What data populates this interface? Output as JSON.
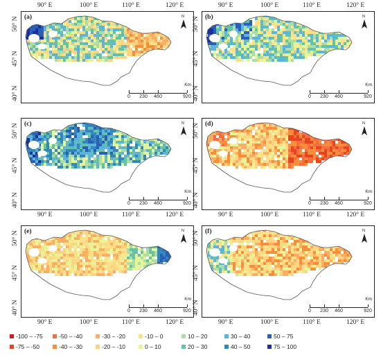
{
  "panels": [
    {
      "id": "a",
      "label": "(a)",
      "theme": "a"
    },
    {
      "id": "b",
      "label": "(b)",
      "theme": "b"
    },
    {
      "id": "c",
      "label": "(c)",
      "theme": "c"
    },
    {
      "id": "d",
      "label": "(d)",
      "theme": "d"
    },
    {
      "id": "e",
      "label": "(e)",
      "theme": "e"
    },
    {
      "id": "f",
      "label": "(f)",
      "theme": "f"
    }
  ],
  "lon_ticks": [
    "90° E",
    "100° E",
    "110° E",
    "120° E"
  ],
  "lat_ticks": [
    "50° N",
    "45° N",
    "40° N"
  ],
  "scale": {
    "unit": "Km",
    "ticks": [
      "0",
      "230",
      "460",
      "920"
    ]
  },
  "north_label": "N",
  "legend": [
    {
      "label": "-100 – -75",
      "color": "#d7191c"
    },
    {
      "label": "-75 – -50",
      "color": "#e8451f"
    },
    {
      "label": "-50 – -40",
      "color": "#f46d43"
    },
    {
      "label": "-40 – -30",
      "color": "#f88d3c"
    },
    {
      "label": "-30 – -20",
      "color": "#fdae61"
    },
    {
      "label": "-20 – -10",
      "color": "#fed480"
    },
    {
      "label": "-10 – 0",
      "color": "#fee08b"
    },
    {
      "label": "0 – 10",
      "color": "#e6f598"
    },
    {
      "label": "10 – 20",
      "color": "#abdda4"
    },
    {
      "label": "20 – 30",
      "color": "#66c2a5"
    },
    {
      "label": "30 – 40",
      "color": "#5ab4dc"
    },
    {
      "label": "40 – 50",
      "color": "#3288bd"
    },
    {
      "label": "50 – 75",
      "color": "#2a5fb8"
    },
    {
      "label": "75 – 100",
      "color": "#1c2f9a"
    }
  ]
}
